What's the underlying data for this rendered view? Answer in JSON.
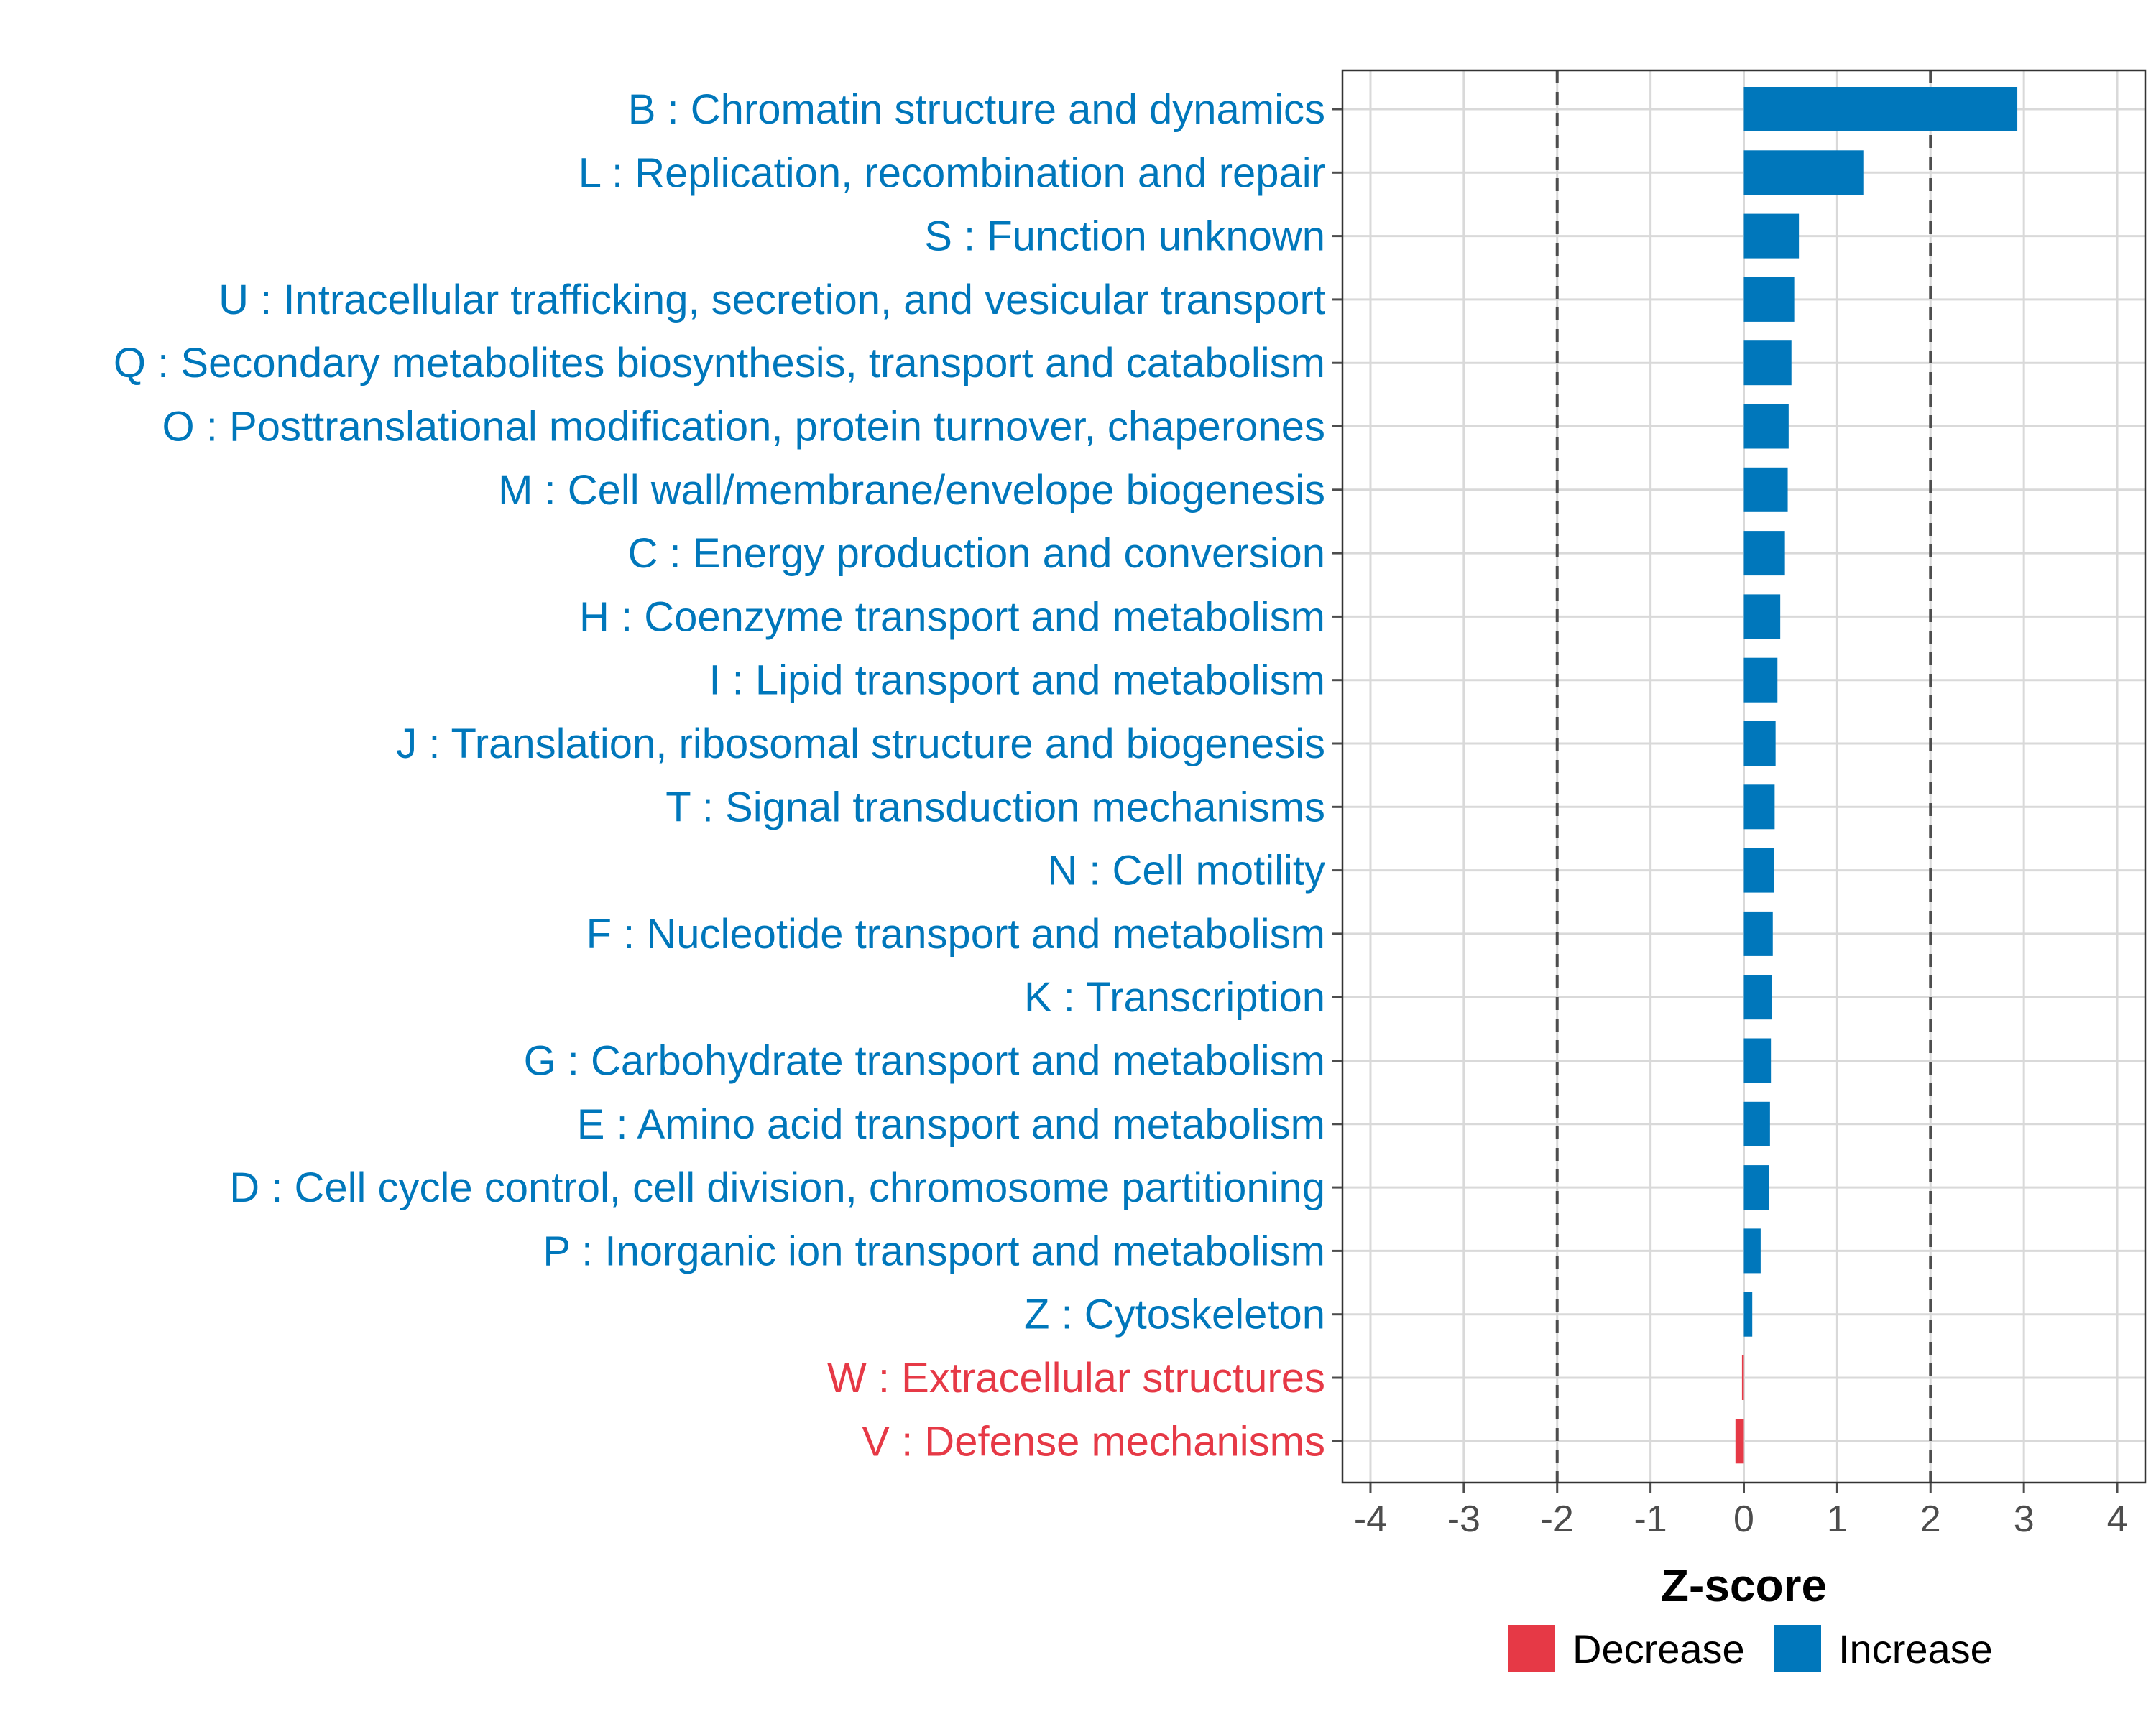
{
  "colors": {
    "increase": "#0077BB",
    "decrease": "#E63946",
    "grid": "#D9D9D9",
    "refline": "#4D4D4D",
    "tick": "#4D4D4D",
    "panel_border": "#333333"
  },
  "chart_data": {
    "type": "bar",
    "orientation": "horizontal",
    "xlabel": "Z-score",
    "ylabel": "",
    "xlim": [
      -4.3,
      4.3
    ],
    "x_ticks": [
      -4,
      -3,
      -2,
      -1,
      0,
      1,
      2,
      3,
      4
    ],
    "x_tick_labels": [
      "-4",
      "-3",
      "-2",
      "-1",
      "0",
      "1",
      "2",
      "3",
      "4"
    ],
    "reference_lines": [
      -2,
      2
    ],
    "grid": true,
    "legend_position": "bottom",
    "legend": [
      {
        "name": "Decrease",
        "color": "#E63946"
      },
      {
        "name": "Increase",
        "color": "#0077BB"
      }
    ],
    "categories": [
      "B : Chromatin structure and dynamics",
      "L : Replication, recombination and repair",
      "S : Function unknown",
      "U : Intracellular trafficking, secretion, and vesicular transport",
      "Q : Secondary metabolites biosynthesis, transport and catabolism",
      "O : Posttranslational modification, protein turnover, chaperones",
      "M : Cell wall/membrane/envelope biogenesis",
      "C : Energy production and conversion",
      "H : Coenzyme transport and metabolism",
      "I : Lipid transport and metabolism",
      "J : Translation, ribosomal structure and biogenesis",
      "T : Signal transduction mechanisms",
      "N : Cell motility",
      "F : Nucleotide transport and metabolism",
      "K : Transcription",
      "G : Carbohydrate transport and metabolism",
      "E : Amino acid transport and metabolism",
      "D : Cell cycle control, cell division, chromosome partitioning",
      "P : Inorganic ion transport and metabolism",
      "Z : Cytoskeleton",
      "W : Extracellular structures",
      "V : Defense mechanisms"
    ],
    "values": [
      2.93,
      1.28,
      0.59,
      0.54,
      0.51,
      0.48,
      0.47,
      0.44,
      0.39,
      0.36,
      0.34,
      0.33,
      0.32,
      0.31,
      0.3,
      0.29,
      0.28,
      0.27,
      0.18,
      0.09,
      -0.02,
      -0.09
    ],
    "direction": [
      "Increase",
      "Increase",
      "Increase",
      "Increase",
      "Increase",
      "Increase",
      "Increase",
      "Increase",
      "Increase",
      "Increase",
      "Increase",
      "Increase",
      "Increase",
      "Increase",
      "Increase",
      "Increase",
      "Increase",
      "Increase",
      "Increase",
      "Increase",
      "Decrease",
      "Decrease"
    ]
  }
}
